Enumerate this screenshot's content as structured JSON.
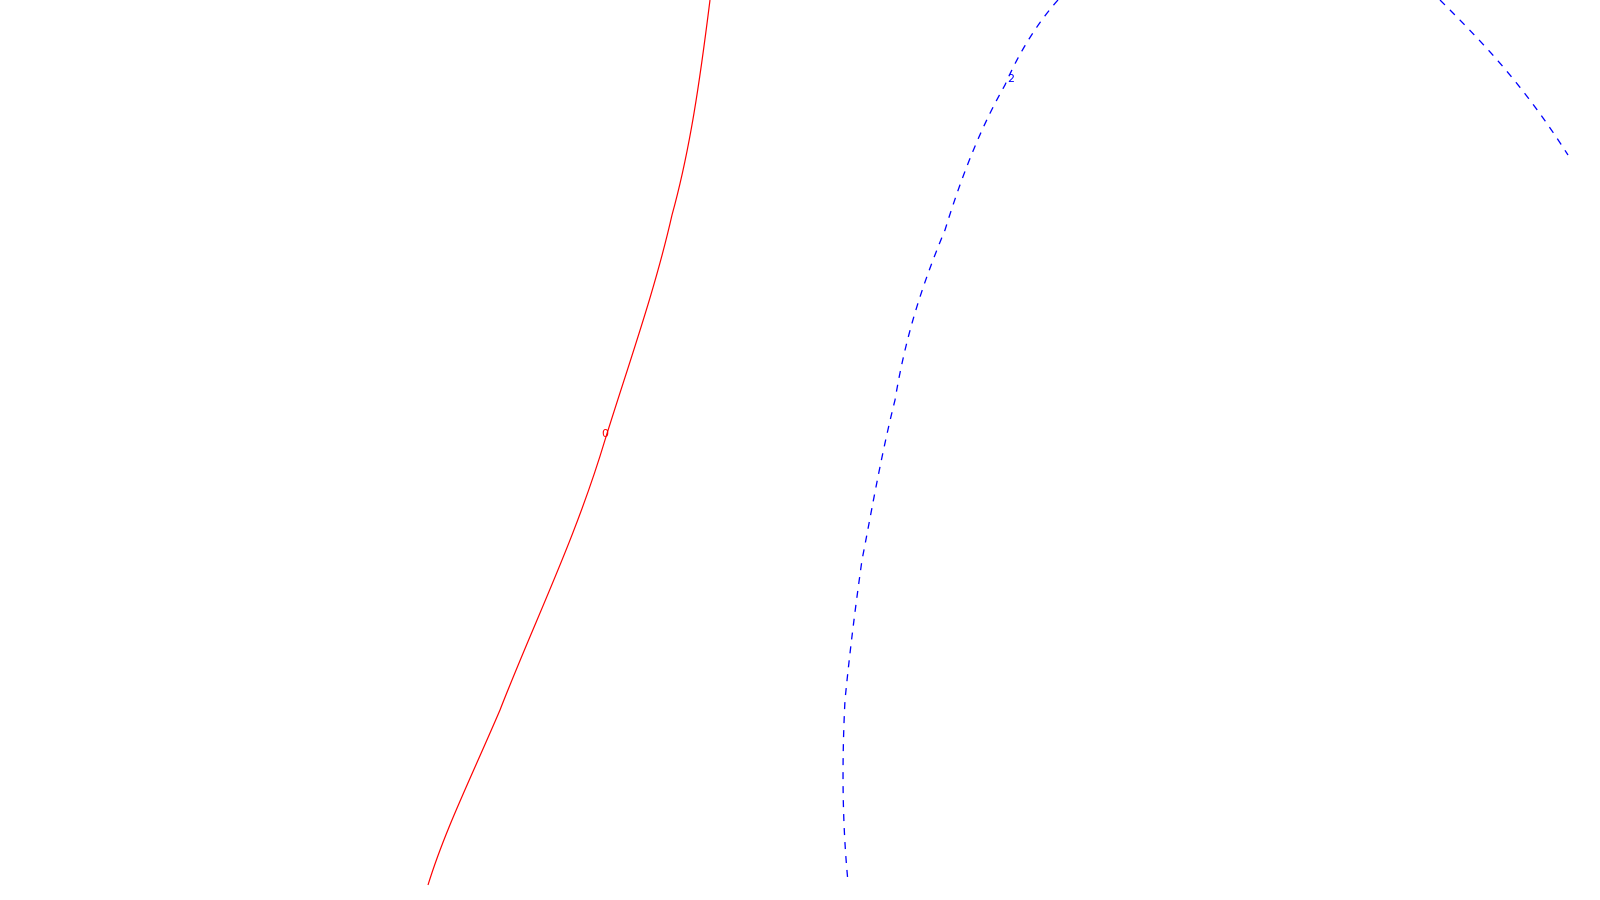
{
  "contours": [
    {
      "level_label": "0",
      "color": "#ff0000",
      "line_style": "solid"
    },
    {
      "level_label": "2",
      "color": "#0000ff",
      "line_style": "dashed"
    }
  ]
}
